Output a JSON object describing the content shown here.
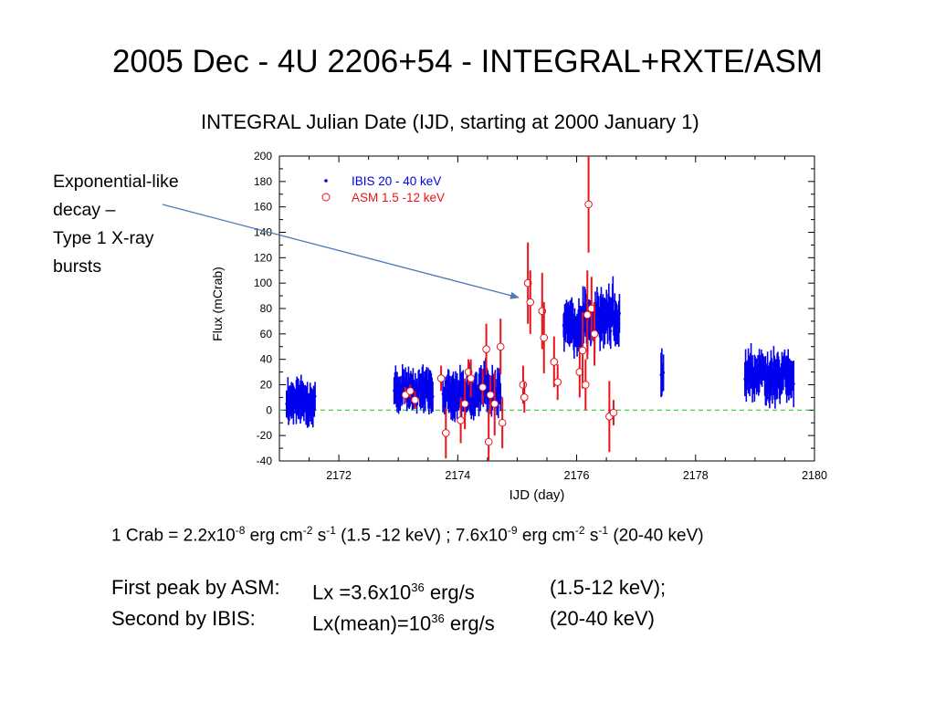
{
  "slide": {
    "title": "2005 Dec - 4U 2206+54 - INTEGRAL+RXTE/ASM",
    "top_axis_title": "INTEGRAL Julian Date (IJD, starting at 2000 January 1)",
    "callout_lines": [
      "Exponential-like",
      "decay –",
      "Type 1 X-ray",
      "bursts"
    ],
    "crab_line": {
      "p1": "1 Crab = 2.2x10",
      "e1": "-8",
      "p2": " erg cm",
      "e2": "-2",
      "p3": " s",
      "e3": "-1",
      "p4": " (1.5 -12 keV) ; 7.6x10",
      "e4": "-9",
      "p5": " erg cm",
      "e5": "-2",
      "p6": " s",
      "e6": "-1",
      "p7": " (20-40 keV)"
    },
    "first_peak": {
      "label": "First peak by ASM:",
      "value": "Lx =3.6x10",
      "exp": "36",
      "unit": " erg/s",
      "band": "(1.5-12 keV);"
    },
    "second_peak": {
      "label": "Second by IBIS:",
      "value": "Lx(mean)=10",
      "exp": "36",
      "unit": " erg/s",
      "band": "(20-40 keV)"
    }
  },
  "chart_data": {
    "type": "scatter",
    "xlabel": "IJD (day)",
    "ylabel": "Flux (mCrab)",
    "xlim": [
      2171,
      2180
    ],
    "ylim": [
      -40,
      200
    ],
    "x_ticks": [
      2172,
      2174,
      2176,
      2178,
      2180
    ],
    "y_ticks": [
      -40,
      -20,
      0,
      20,
      40,
      60,
      80,
      100,
      120,
      140,
      160,
      180,
      200
    ],
    "zero_line": {
      "y": 0,
      "color": "#39c24a",
      "style": "dashed"
    },
    "legend_position": "top-left",
    "colors": {
      "ibis": "#0000ee",
      "asm": "#e8141b",
      "callout_arrow": "#4a7ab5"
    },
    "callout_target": {
      "x": 2175.2,
      "y": 90
    },
    "series": [
      {
        "name": "IBIS 20 - 40 keV",
        "marker": "dot",
        "segments": [
          {
            "x_start": 2171.12,
            "x_end": 2171.6,
            "n": 42,
            "mean": 8,
            "amp": 10,
            "err": 13,
            "seed": 11
          },
          {
            "x_start": 2172.93,
            "x_end": 2173.58,
            "n": 52,
            "mean": 18,
            "amp": 9,
            "err": 12,
            "seed": 23
          },
          {
            "x_start": 2173.75,
            "x_end": 2174.72,
            "n": 78,
            "mean": 16,
            "amp": 11,
            "err": 13,
            "seed": 37
          },
          {
            "x_start": 2175.78,
            "x_end": 2176.72,
            "n": 96,
            "mean": 72,
            "amp": 18,
            "err": 14,
            "seed": 53
          },
          {
            "x_start": 2177.42,
            "x_end": 2177.46,
            "n": 4,
            "mean": 30,
            "amp": 8,
            "err": 14,
            "seed": 61
          },
          {
            "x_start": 2178.83,
            "x_end": 2179.65,
            "n": 72,
            "mean": 28,
            "amp": 13,
            "err": 14,
            "seed": 79
          }
        ]
      },
      {
        "name": "ASM 1.5 -12 keV",
        "marker": "open-circle",
        "points": [
          {
            "x": 2173.12,
            "y": 12,
            "err": 6
          },
          {
            "x": 2173.2,
            "y": 15,
            "err": 5
          },
          {
            "x": 2173.28,
            "y": 8,
            "err": 7
          },
          {
            "x": 2173.72,
            "y": 25,
            "err": 10
          },
          {
            "x": 2173.8,
            "y": -18,
            "err": 20
          },
          {
            "x": 2174.05,
            "y": -8,
            "err": 18
          },
          {
            "x": 2174.12,
            "y": 5,
            "err": 20
          },
          {
            "x": 2174.18,
            "y": 30,
            "err": 10
          },
          {
            "x": 2174.22,
            "y": 25,
            "err": 15
          },
          {
            "x": 2174.42,
            "y": 18,
            "err": 14
          },
          {
            "x": 2174.48,
            "y": 48,
            "err": 20
          },
          {
            "x": 2174.52,
            "y": -25,
            "err": 25
          },
          {
            "x": 2174.55,
            "y": 12,
            "err": 15
          },
          {
            "x": 2174.62,
            "y": 5,
            "err": 25
          },
          {
            "x": 2174.72,
            "y": 50,
            "err": 22
          },
          {
            "x": 2174.75,
            "y": -10,
            "err": 20
          },
          {
            "x": 2175.1,
            "y": 20,
            "err": 15
          },
          {
            "x": 2175.12,
            "y": 10,
            "err": 12
          },
          {
            "x": 2175.18,
            "y": 100,
            "err": 32
          },
          {
            "x": 2175.22,
            "y": 85,
            "err": 25
          },
          {
            "x": 2175.42,
            "y": 78,
            "err": 30
          },
          {
            "x": 2175.45,
            "y": 57,
            "err": 28
          },
          {
            "x": 2175.62,
            "y": 38,
            "err": 20
          },
          {
            "x": 2175.68,
            "y": 22,
            "err": 14
          },
          {
            "x": 2176.05,
            "y": 30,
            "err": 20
          },
          {
            "x": 2176.1,
            "y": 47,
            "err": 30
          },
          {
            "x": 2176.15,
            "y": 20,
            "err": 20
          },
          {
            "x": 2176.18,
            "y": 75,
            "err": 35
          },
          {
            "x": 2176.2,
            "y": 162,
            "err": 38
          },
          {
            "x": 2176.25,
            "y": 80,
            "err": 25
          },
          {
            "x": 2176.3,
            "y": 60,
            "err": 25
          },
          {
            "x": 2176.55,
            "y": -5,
            "err": 28
          },
          {
            "x": 2176.62,
            "y": -2,
            "err": 10
          }
        ]
      }
    ]
  }
}
